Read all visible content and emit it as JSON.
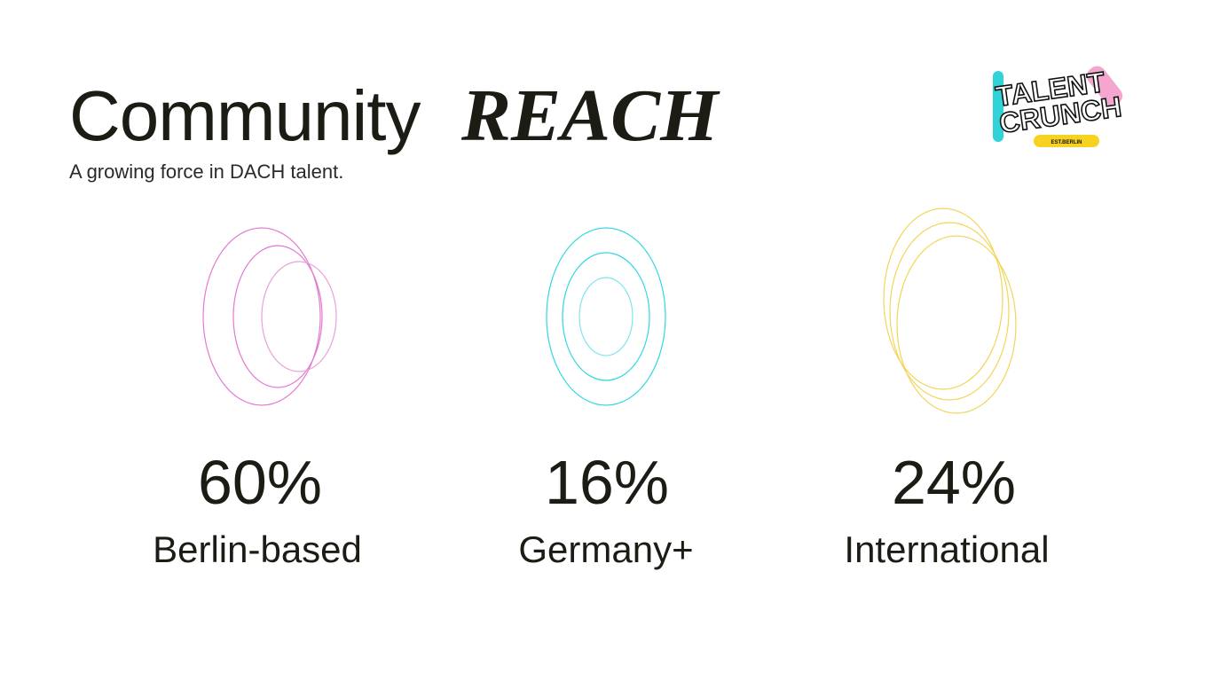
{
  "header": {
    "title_main": "Community",
    "title_emphasis": "REACH",
    "subtitle": "A growing force in DACH talent."
  },
  "logo": {
    "line1": "TALENT",
    "line2": "CRUNCH",
    "badge": "EST.BERLIN"
  },
  "stats": [
    {
      "value": "60%",
      "label": "Berlin-based"
    },
    {
      "value": "16%",
      "label": "Germany+"
    },
    {
      "value": "24%",
      "label": "International"
    }
  ]
}
